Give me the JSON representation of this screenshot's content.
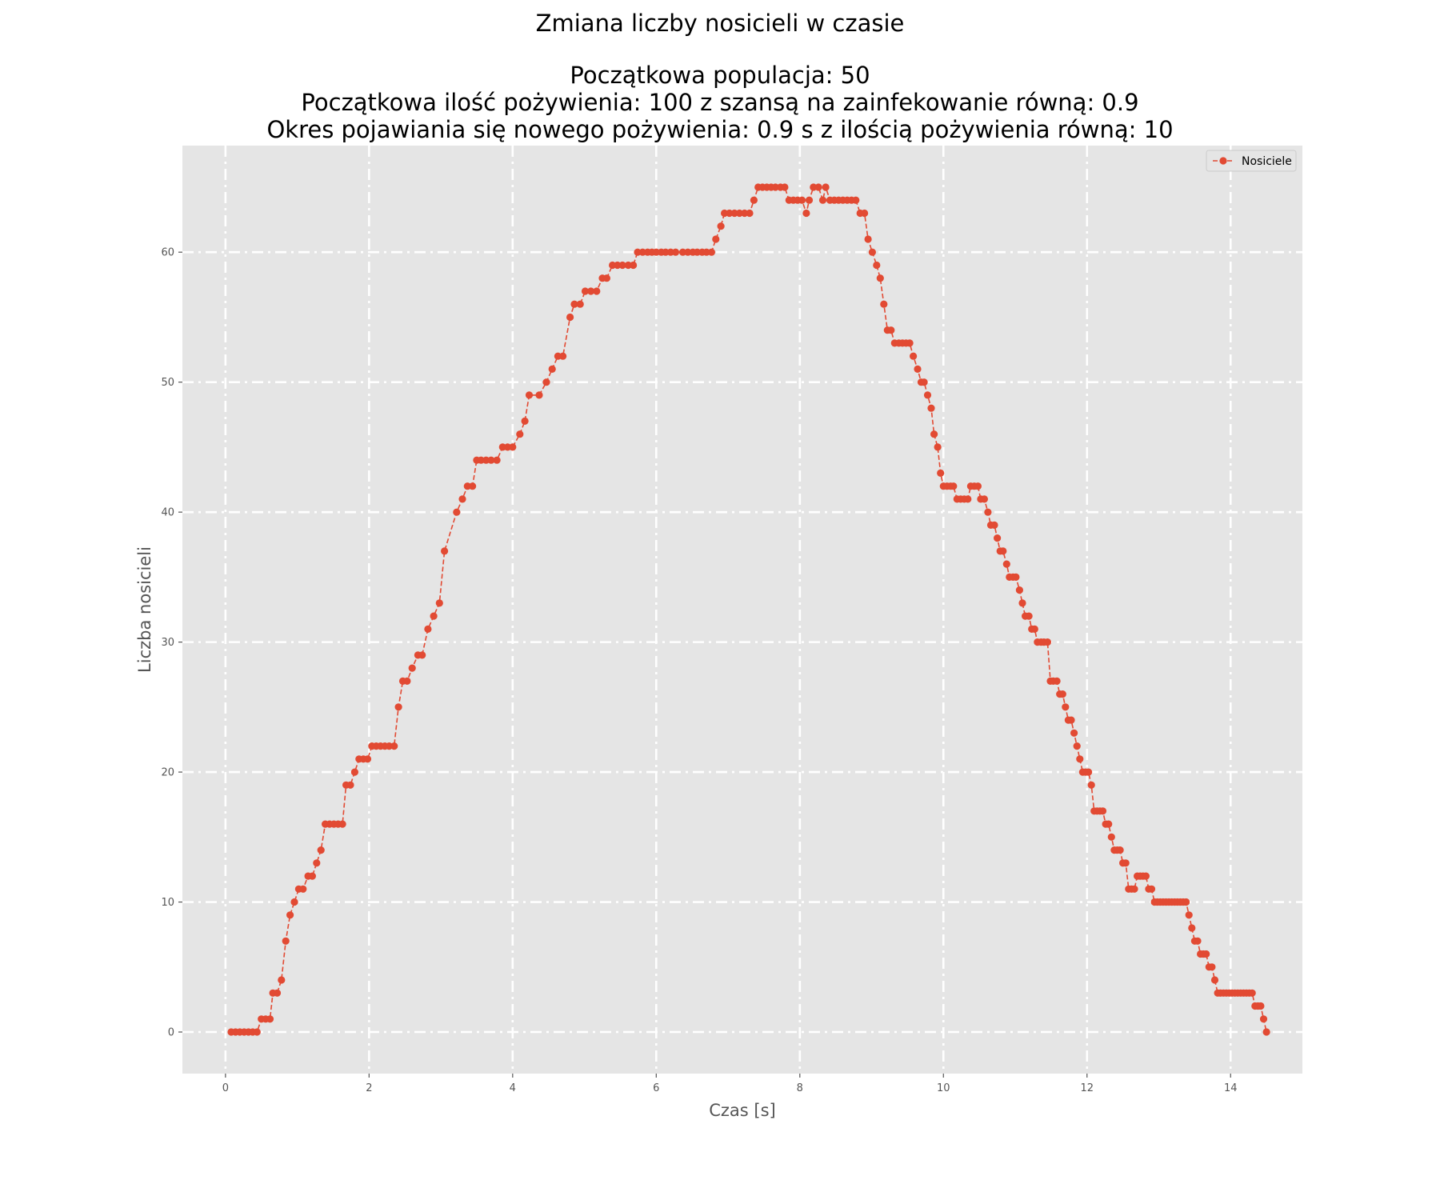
{
  "chart_data": {
    "type": "line",
    "title": "Zmiana liczby nosicieli w czasie",
    "subtitle_lines": [
      "Początkowa populacja: 50",
      "Początkowa ilość pożywienia: 100 z szansą na zainfekowanie równą: 0.9",
      "Okres pojawiania się nowego pożywienia: 0.9 s z ilością pożywienia równą: 10"
    ],
    "xlabel": "Czas [s]",
    "ylabel": "Liczba nosicieli",
    "xlim": [
      -0.6,
      15.0
    ],
    "ylim": [
      -3.2,
      68.2
    ],
    "xticks": [
      0,
      2,
      4,
      6,
      8,
      10,
      12,
      14
    ],
    "yticks": [
      0,
      10,
      20,
      30,
      40,
      50,
      60
    ],
    "grid": true,
    "grid_style": "dash-dot, white",
    "legend_position": "top-right",
    "style": "ggplot",
    "colors": {
      "series": "#E24A33",
      "plot_background": "#E5E5E5",
      "grid": "#FFFFFF",
      "tick_text": "#555555"
    },
    "series": [
      {
        "name": "Nosiciele",
        "marker": "o",
        "linestyle": "dashed",
        "points": [
          [
            0.08,
            0
          ],
          [
            0.14,
            0
          ],
          [
            0.2,
            0
          ],
          [
            0.26,
            0
          ],
          [
            0.32,
            0
          ],
          [
            0.38,
            0
          ],
          [
            0.44,
            0
          ],
          [
            0.5,
            1
          ],
          [
            0.56,
            1
          ],
          [
            0.62,
            1
          ],
          [
            0.66,
            3
          ],
          [
            0.72,
            3
          ],
          [
            0.78,
            4
          ],
          [
            0.84,
            7
          ],
          [
            0.9,
            9
          ],
          [
            0.96,
            10
          ],
          [
            1.02,
            11
          ],
          [
            1.08,
            11
          ],
          [
            1.15,
            12
          ],
          [
            1.21,
            12
          ],
          [
            1.27,
            13
          ],
          [
            1.33,
            14
          ],
          [
            1.39,
            16
          ],
          [
            1.45,
            16
          ],
          [
            1.51,
            16
          ],
          [
            1.57,
            16
          ],
          [
            1.63,
            16
          ],
          [
            1.68,
            19
          ],
          [
            1.74,
            19
          ],
          [
            1.8,
            20
          ],
          [
            1.86,
            21
          ],
          [
            1.92,
            21
          ],
          [
            1.98,
            21
          ],
          [
            2.04,
            22
          ],
          [
            2.1,
            22
          ],
          [
            2.16,
            22
          ],
          [
            2.22,
            22
          ],
          [
            2.28,
            22
          ],
          [
            2.35,
            22
          ],
          [
            2.41,
            25
          ],
          [
            2.47,
            27
          ],
          [
            2.53,
            27
          ],
          [
            2.6,
            28
          ],
          [
            2.68,
            29
          ],
          [
            2.74,
            29
          ],
          [
            2.82,
            31
          ],
          [
            2.9,
            32
          ],
          [
            2.98,
            33
          ],
          [
            3.05,
            37
          ],
          [
            3.22,
            40
          ],
          [
            3.3,
            41
          ],
          [
            3.37,
            42
          ],
          [
            3.44,
            42
          ],
          [
            3.5,
            44
          ],
          [
            3.56,
            44
          ],
          [
            3.63,
            44
          ],
          [
            3.7,
            44
          ],
          [
            3.78,
            44
          ],
          [
            3.86,
            45
          ],
          [
            3.93,
            45
          ],
          [
            4.0,
            45
          ],
          [
            4.1,
            46
          ],
          [
            4.17,
            47
          ],
          [
            4.23,
            49
          ],
          [
            4.37,
            49
          ],
          [
            4.47,
            50
          ],
          [
            4.55,
            51
          ],
          [
            4.63,
            52
          ],
          [
            4.7,
            52
          ],
          [
            4.8,
            55
          ],
          [
            4.86,
            56
          ],
          [
            4.94,
            56
          ],
          [
            5.01,
            57
          ],
          [
            5.09,
            57
          ],
          [
            5.17,
            57
          ],
          [
            5.25,
            58
          ],
          [
            5.31,
            58
          ],
          [
            5.39,
            59
          ],
          [
            5.46,
            59
          ],
          [
            5.53,
            59
          ],
          [
            5.61,
            59
          ],
          [
            5.68,
            59
          ],
          [
            5.74,
            60
          ],
          [
            5.81,
            60
          ],
          [
            5.88,
            60
          ],
          [
            5.94,
            60
          ],
          [
            6.0,
            60
          ],
          [
            6.07,
            60
          ],
          [
            6.13,
            60
          ],
          [
            6.2,
            60
          ],
          [
            6.27,
            60
          ],
          [
            6.37,
            60
          ],
          [
            6.44,
            60
          ],
          [
            6.51,
            60
          ],
          [
            6.57,
            60
          ],
          [
            6.64,
            60
          ],
          [
            6.7,
            60
          ],
          [
            6.77,
            60
          ],
          [
            6.83,
            61
          ],
          [
            6.9,
            62
          ],
          [
            6.95,
            63
          ],
          [
            7.02,
            63
          ],
          [
            7.09,
            63
          ],
          [
            7.16,
            63
          ],
          [
            7.23,
            63
          ],
          [
            7.3,
            63
          ],
          [
            7.36,
            64
          ],
          [
            7.42,
            65
          ],
          [
            7.48,
            65
          ],
          [
            7.54,
            65
          ],
          [
            7.6,
            65
          ],
          [
            7.66,
            65
          ],
          [
            7.73,
            65
          ],
          [
            7.79,
            65
          ],
          [
            7.85,
            64
          ],
          [
            7.91,
            64
          ],
          [
            7.97,
            64
          ],
          [
            8.03,
            64
          ],
          [
            8.09,
            63
          ],
          [
            8.13,
            64
          ],
          [
            8.19,
            65
          ],
          [
            8.26,
            65
          ],
          [
            8.32,
            64
          ],
          [
            8.36,
            65
          ],
          [
            8.42,
            64
          ],
          [
            8.48,
            64
          ],
          [
            8.54,
            64
          ],
          [
            8.6,
            64
          ],
          [
            8.66,
            64
          ],
          [
            8.72,
            64
          ],
          [
            8.78,
            64
          ],
          [
            8.84,
            63
          ],
          [
            8.9,
            63
          ],
          [
            8.95,
            61
          ],
          [
            9.01,
            60
          ],
          [
            9.07,
            59
          ],
          [
            9.12,
            58
          ],
          [
            9.17,
            56
          ],
          [
            9.22,
            54
          ],
          [
            9.27,
            54
          ],
          [
            9.32,
            53
          ],
          [
            9.38,
            53
          ],
          [
            9.43,
            53
          ],
          [
            9.48,
            53
          ],
          [
            9.53,
            53
          ],
          [
            9.58,
            52
          ],
          [
            9.64,
            51
          ],
          [
            9.69,
            50
          ],
          [
            9.73,
            50
          ],
          [
            9.78,
            49
          ],
          [
            9.83,
            48
          ],
          [
            9.87,
            46
          ],
          [
            9.92,
            45
          ],
          [
            9.96,
            43
          ],
          [
            10.0,
            42
          ],
          [
            10.05,
            42
          ],
          [
            10.1,
            42
          ],
          [
            10.14,
            42
          ],
          [
            10.19,
            41
          ],
          [
            10.24,
            41
          ],
          [
            10.29,
            41
          ],
          [
            10.34,
            41
          ],
          [
            10.38,
            42
          ],
          [
            10.43,
            42
          ],
          [
            10.48,
            42
          ],
          [
            10.52,
            41
          ],
          [
            10.57,
            41
          ],
          [
            10.62,
            40
          ],
          [
            10.66,
            39
          ],
          [
            10.71,
            39
          ],
          [
            10.75,
            38
          ],
          [
            10.79,
            37
          ],
          [
            10.83,
            37
          ],
          [
            10.88,
            36
          ],
          [
            10.92,
            35
          ],
          [
            10.97,
            35
          ],
          [
            11.01,
            35
          ],
          [
            11.06,
            34
          ],
          [
            11.1,
            33
          ],
          [
            11.14,
            32
          ],
          [
            11.19,
            32
          ],
          [
            11.23,
            31
          ],
          [
            11.27,
            31
          ],
          [
            11.31,
            30
          ],
          [
            11.36,
            30
          ],
          [
            11.4,
            30
          ],
          [
            11.45,
            30
          ],
          [
            11.49,
            27
          ],
          [
            11.53,
            27
          ],
          [
            11.58,
            27
          ],
          [
            11.62,
            26
          ],
          [
            11.66,
            26
          ],
          [
            11.7,
            25
          ],
          [
            11.74,
            24
          ],
          [
            11.78,
            24
          ],
          [
            11.82,
            23
          ],
          [
            11.86,
            22
          ],
          [
            11.9,
            21
          ],
          [
            11.94,
            20
          ],
          [
            11.98,
            20
          ],
          [
            12.02,
            20
          ],
          [
            12.06,
            19
          ],
          [
            12.1,
            17
          ],
          [
            12.14,
            17
          ],
          [
            12.18,
            17
          ],
          [
            12.22,
            17
          ],
          [
            12.26,
            16
          ],
          [
            12.3,
            16
          ],
          [
            12.34,
            15
          ],
          [
            12.38,
            14
          ],
          [
            12.42,
            14
          ],
          [
            12.46,
            14
          ],
          [
            12.5,
            13
          ],
          [
            12.54,
            13
          ],
          [
            12.58,
            11
          ],
          [
            12.62,
            11
          ],
          [
            12.66,
            11
          ],
          [
            12.7,
            12
          ],
          [
            12.74,
            12
          ],
          [
            12.78,
            12
          ],
          [
            12.82,
            12
          ],
          [
            12.86,
            11
          ],
          [
            12.9,
            11
          ],
          [
            12.94,
            10
          ],
          [
            12.98,
            10
          ],
          [
            13.02,
            10
          ],
          [
            13.06,
            10
          ],
          [
            13.1,
            10
          ],
          [
            13.14,
            10
          ],
          [
            13.18,
            10
          ],
          [
            13.22,
            10
          ],
          [
            13.26,
            10
          ],
          [
            13.3,
            10
          ],
          [
            13.34,
            10
          ],
          [
            13.38,
            10
          ],
          [
            13.42,
            9
          ],
          [
            13.46,
            8
          ],
          [
            13.5,
            7
          ],
          [
            13.54,
            7
          ],
          [
            13.58,
            6
          ],
          [
            13.62,
            6
          ],
          [
            13.66,
            6
          ],
          [
            13.7,
            5
          ],
          [
            13.74,
            5
          ],
          [
            13.78,
            4
          ],
          [
            13.82,
            3
          ],
          [
            13.86,
            3
          ],
          [
            13.9,
            3
          ],
          [
            13.94,
            3
          ],
          [
            13.98,
            3
          ],
          [
            14.02,
            3
          ],
          [
            14.06,
            3
          ],
          [
            14.1,
            3
          ],
          [
            14.14,
            3
          ],
          [
            14.18,
            3
          ],
          [
            14.22,
            3
          ],
          [
            14.26,
            3
          ],
          [
            14.3,
            3
          ],
          [
            14.34,
            2
          ],
          [
            14.38,
            2
          ],
          [
            14.42,
            2
          ],
          [
            14.46,
            1
          ],
          [
            14.5,
            0
          ]
        ]
      }
    ]
  }
}
